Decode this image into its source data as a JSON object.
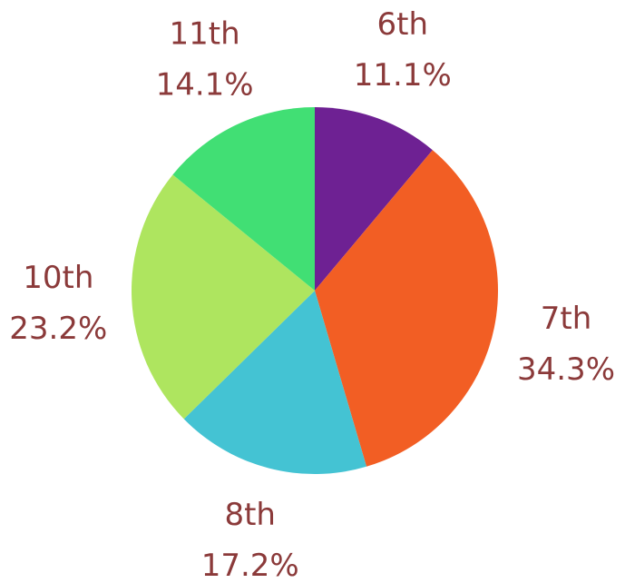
{
  "chart_data": {
    "type": "pie",
    "title": "",
    "start_angle_deg": 0,
    "direction": "clockwise",
    "slices": [
      {
        "label": "6th",
        "value": 11.1,
        "value_label": "11.1%",
        "color": "#6e2193"
      },
      {
        "label": "7th",
        "value": 34.3,
        "value_label": "34.3%",
        "color": "#f25e24"
      },
      {
        "label": "8th",
        "value": 17.2,
        "value_label": "17.2%",
        "color": "#44c3d3"
      },
      {
        "label": "10th",
        "value": 23.2,
        "value_label": "23.2%",
        "color": "#aee55f"
      },
      {
        "label": "11th",
        "value": 14.1,
        "value_label": "14.1%",
        "color": "#41df74"
      }
    ],
    "label_color": "#8b3a3a",
    "legend": "none"
  }
}
